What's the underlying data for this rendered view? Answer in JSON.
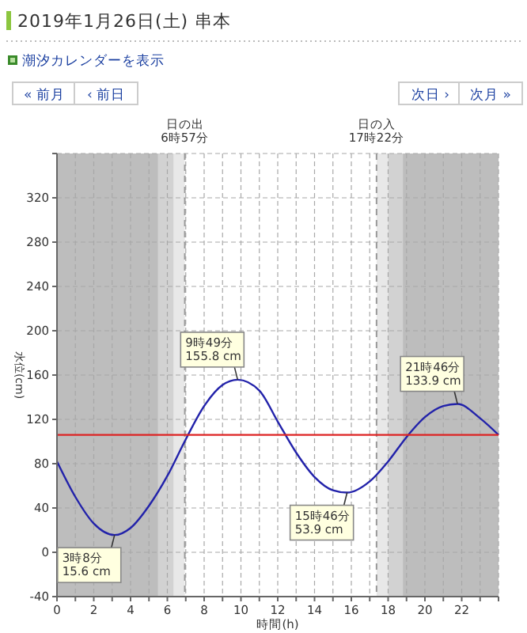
{
  "chart_data": {
    "type": "line",
    "title": "2019年1月26日(土) 串本",
    "annotations": [
      "潮汐カレンダーを表示",
      "« 前月",
      "‹ 前日",
      "次日 ›",
      "次月 »",
      {
        "text": "3時8分\n15.6 cm",
        "x": 3.13,
        "y": 15.6
      },
      {
        "text": "9時49分\n155.8 cm",
        "x": 9.82,
        "y": 155.8
      },
      {
        "text": "15時46分\n53.9 cm",
        "x": 15.77,
        "y": 53.9
      },
      {
        "text": "21時46分\n133.9 cm",
        "x": 21.77,
        "y": 133.9
      }
    ],
    "xlabel": "時間(h)",
    "ylabel": "水位(cm)",
    "x": [
      0,
      1,
      2,
      3.13,
      4,
      5,
      6,
      7,
      8,
      9,
      9.82,
      11,
      12,
      13,
      14,
      15,
      15.77,
      17,
      18,
      19,
      20,
      21,
      21.77,
      23,
      24
    ],
    "series": [
      {
        "color": "#2222aa",
        "values": [
          82,
          50,
          26,
          15.6,
          22,
          42,
          69,
          102,
          132,
          151,
          155.8,
          146,
          118,
          90,
          68,
          56,
          53.9,
          64,
          82,
          104,
          122,
          132,
          133.9,
          121,
          106
        ]
      }
    ],
    "xlim": [
      0,
      24
    ],
    "ylim": [
      -40,
      360
    ],
    "xticks": [
      0,
      {
        "value": 1,
        "label": null
      },
      2,
      {
        "value": 3,
        "label": null
      },
      4,
      {
        "value": 5,
        "label": null
      },
      6,
      {
        "value": 7,
        "label": null
      },
      8,
      {
        "value": 9,
        "label": null
      },
      10,
      {
        "value": 11,
        "label": null
      },
      12,
      {
        "value": 13,
        "label": null
      },
      14,
      {
        "value": 15,
        "label": null
      },
      16,
      {
        "value": 17,
        "label": null
      },
      18,
      {
        "value": 19,
        "label": null
      },
      20,
      {
        "value": 21,
        "label": null
      },
      22,
      {
        "value": 23,
        "label": null
      },
      {
        "value": 24,
        "label": null
      }
    ],
    "yticks": [
      -40,
      0,
      40,
      80,
      120,
      160,
      200,
      240,
      280,
      320,
      {
        "value": 360,
        "label": null
      }
    ],
    "grid": true,
    "marker": "none",
    "line_style": "solid",
    "ref_lines": [
      {
        "axis": "y",
        "value": 106,
        "color": "#dd2222",
        "line_style": "solid"
      },
      {
        "axis": "x",
        "value": 6.95,
        "label": "日の出\n6時57分",
        "color": "#999999",
        "line_style": "dashed"
      },
      {
        "axis": "x",
        "value": 17.37,
        "label": "日の入\n17時22分",
        "color": "#999999",
        "line_style": "dashed"
      }
    ],
    "bands": [
      {
        "axis": "x",
        "from": 0,
        "to": 5.5,
        "color": "#bdbdbd"
      },
      {
        "axis": "x",
        "from": 5.5,
        "to": 6.35,
        "color": "#d2d2d2"
      },
      {
        "axis": "x",
        "from": 6.35,
        "to": 6.95,
        "color": "#e8e8e8"
      },
      {
        "axis": "x",
        "from": 17.37,
        "to": 18.0,
        "color": "#e8e8e8"
      },
      {
        "axis": "x",
        "from": 18.0,
        "to": 18.8,
        "color": "#d2d2d2"
      },
      {
        "axis": "x",
        "from": 18.8,
        "to": 24,
        "color": "#bdbdbd"
      }
    ]
  }
}
